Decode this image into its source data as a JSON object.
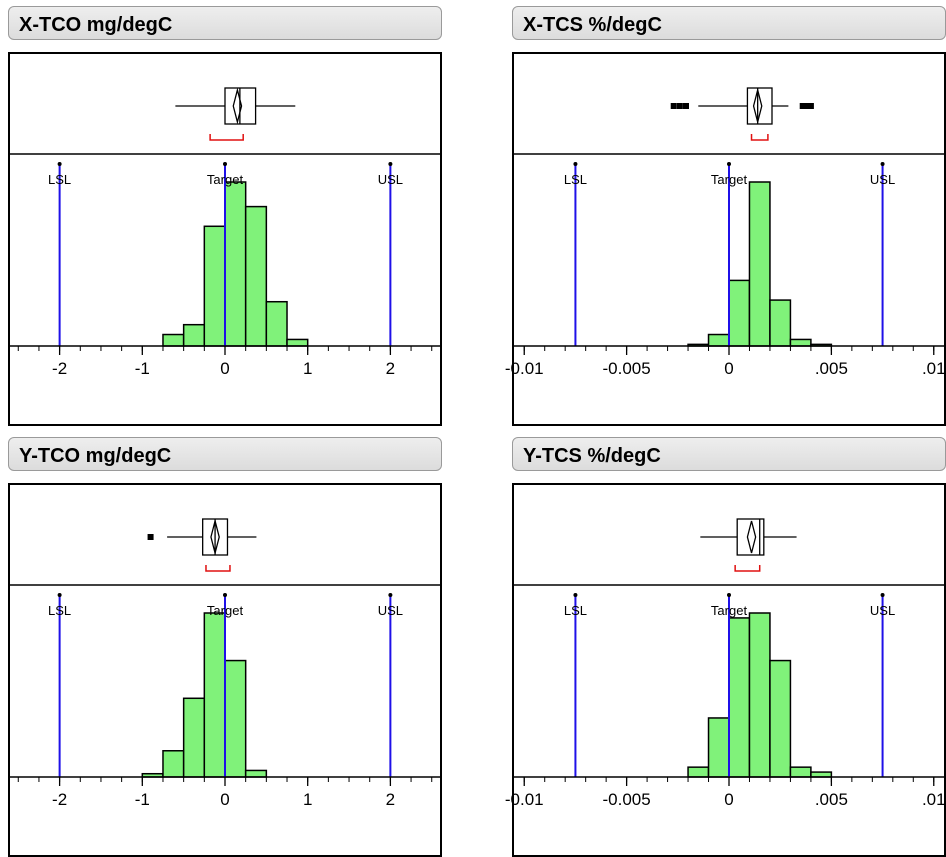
{
  "colors": {
    "bar_fill": "#80f27a",
    "spec_line": "#1f10e8",
    "bracket": "#e01010"
  },
  "chart_data": [
    {
      "type": "bar",
      "title": "X-TCO mg/degC",
      "xlim": [
        -2.6,
        2.6
      ],
      "ticks": [
        {
          "v": -2,
          "label": "-2"
        },
        {
          "v": -1,
          "label": "-1"
        },
        {
          "v": 0,
          "label": "0"
        },
        {
          "v": 1,
          "label": "1"
        },
        {
          "v": 2,
          "label": "2"
        }
      ],
      "minor_step": 0.25,
      "bin_width": 0.25,
      "bins": [
        {
          "x": -0.75,
          "value": 0.07
        },
        {
          "x": -0.5,
          "value": 0.13
        },
        {
          "x": -0.25,
          "value": 0.73
        },
        {
          "x": 0.0,
          "value": 1.0
        },
        {
          "x": 0.25,
          "value": 0.85
        },
        {
          "x": 0.5,
          "value": 0.27
        },
        {
          "x": 0.75,
          "value": 0.04
        }
      ],
      "spec": [
        {
          "label": "LSL",
          "value": -2
        },
        {
          "label": "Target",
          "value": 0
        },
        {
          "label": "USL",
          "value": 2
        }
      ],
      "boxplot": {
        "whisker_low": -0.6,
        "q1": 0.0,
        "median": 0.18,
        "q3": 0.37,
        "whisker_high": 0.85,
        "mean": 0.15,
        "mean_ci": [
          0.1,
          0.2
        ],
        "shortest_half": [
          -0.18,
          0.22
        ],
        "outliers": []
      }
    },
    {
      "type": "bar",
      "title": "X-TCS %/degC",
      "xlim": [
        -0.0105,
        0.0105
      ],
      "ticks": [
        {
          "v": -0.01,
          "label": "-0.01"
        },
        {
          "v": -0.005,
          "label": "-0.005"
        },
        {
          "v": 0,
          "label": "0"
        },
        {
          "v": 0.005,
          "label": ".005"
        },
        {
          "v": 0.01,
          "label": ".01"
        }
      ],
      "minor_step": 0.001,
      "bin_width": 0.001,
      "bins": [
        {
          "x": -0.002,
          "value": 0.01
        },
        {
          "x": -0.001,
          "value": 0.07
        },
        {
          "x": 0.0,
          "value": 0.4
        },
        {
          "x": 0.001,
          "value": 1.0
        },
        {
          "x": 0.002,
          "value": 0.28
        },
        {
          "x": 0.003,
          "value": 0.04
        },
        {
          "x": 0.004,
          "value": 0.01
        }
      ],
      "spec": [
        {
          "label": "LSL",
          "value": -0.0075
        },
        {
          "label": "Target",
          "value": 0
        },
        {
          "label": "USL",
          "value": 0.0075
        }
      ],
      "boxplot": {
        "whisker_low": -0.0015,
        "q1": 0.0009,
        "median": 0.0014,
        "q3": 0.0021,
        "whisker_high": 0.0029,
        "mean": 0.0014,
        "mean_ci": [
          0.0012,
          0.0016
        ],
        "shortest_half": [
          0.0011,
          0.0019
        ],
        "outliers": [
          -0.0027,
          -0.0024,
          -0.0021,
          0.0036,
          0.0038,
          0.004
        ]
      }
    },
    {
      "type": "bar",
      "title": "Y-TCO mg/degC",
      "xlim": [
        -2.6,
        2.6
      ],
      "ticks": [
        {
          "v": -2,
          "label": "-2"
        },
        {
          "v": -1,
          "label": "-1"
        },
        {
          "v": 0,
          "label": "0"
        },
        {
          "v": 1,
          "label": "1"
        },
        {
          "v": 2,
          "label": "2"
        }
      ],
      "minor_step": 0.25,
      "bin_width": 0.25,
      "bins": [
        {
          "x": -1.0,
          "value": 0.02
        },
        {
          "x": -0.75,
          "value": 0.16
        },
        {
          "x": -0.5,
          "value": 0.48
        },
        {
          "x": -0.25,
          "value": 1.0
        },
        {
          "x": 0.0,
          "value": 0.71
        },
        {
          "x": 0.25,
          "value": 0.04
        }
      ],
      "spec": [
        {
          "label": "LSL",
          "value": -2
        },
        {
          "label": "Target",
          "value": 0
        },
        {
          "label": "USL",
          "value": 2
        }
      ],
      "boxplot": {
        "whisker_low": -0.7,
        "q1": -0.27,
        "median": -0.12,
        "q3": 0.03,
        "whisker_high": 0.38,
        "mean": -0.12,
        "mean_ci": [
          -0.17,
          -0.07
        ],
        "shortest_half": [
          -0.23,
          0.06
        ],
        "outliers": [
          -0.9
        ]
      }
    },
    {
      "type": "bar",
      "title": "Y-TCS %/degC",
      "xlim": [
        -0.0105,
        0.0105
      ],
      "ticks": [
        {
          "v": -0.01,
          "label": "-0.01"
        },
        {
          "v": -0.005,
          "label": "-0.005"
        },
        {
          "v": 0,
          "label": "0"
        },
        {
          "v": 0.005,
          "label": ".005"
        },
        {
          "v": 0.01,
          "label": ".01"
        }
      ],
      "minor_step": 0.001,
      "bin_width": 0.001,
      "bins": [
        {
          "x": -0.002,
          "value": 0.06
        },
        {
          "x": -0.001,
          "value": 0.36
        },
        {
          "x": 0.0,
          "value": 0.97
        },
        {
          "x": 0.001,
          "value": 1.0
        },
        {
          "x": 0.002,
          "value": 0.71
        },
        {
          "x": 0.003,
          "value": 0.06
        },
        {
          "x": 0.004,
          "value": 0.03
        }
      ],
      "spec": [
        {
          "label": "LSL",
          "value": -0.0075
        },
        {
          "label": "Target",
          "value": 0
        },
        {
          "label": "USL",
          "value": 0.0075
        }
      ],
      "boxplot": {
        "whisker_low": -0.0014,
        "q1": 0.0004,
        "median": 0.0015,
        "q3": 0.0017,
        "whisker_high": 0.0033,
        "mean": 0.0011,
        "mean_ci": [
          0.0009,
          0.0013
        ],
        "shortest_half": [
          0.0003,
          0.0015
        ],
        "outliers": []
      }
    }
  ]
}
